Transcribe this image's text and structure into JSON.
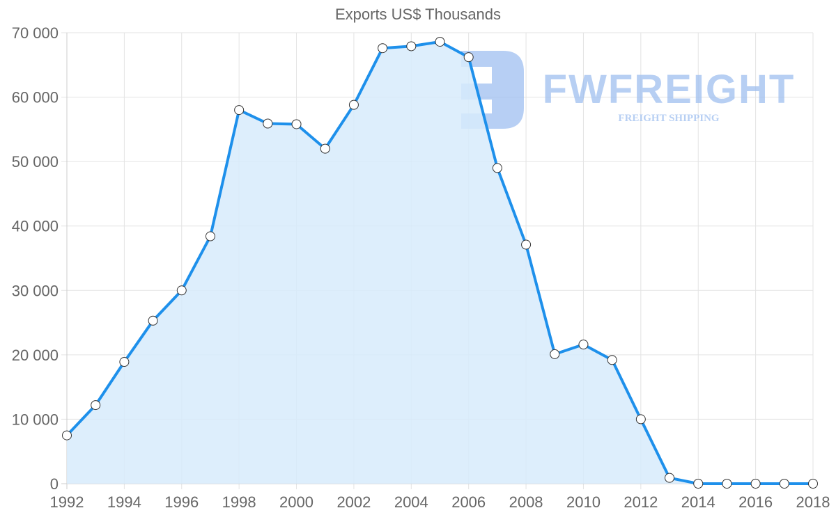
{
  "chart_data": {
    "type": "area",
    "title": "Exports US$ Thousands",
    "xlabel": "",
    "ylabel": "",
    "x": [
      1992,
      1993,
      1994,
      1995,
      1996,
      1997,
      1998,
      1999,
      2000,
      2001,
      2002,
      2003,
      2004,
      2005,
      2006,
      2007,
      2008,
      2009,
      2010,
      2011,
      2012,
      2013,
      2014,
      2015,
      2016,
      2017,
      2018
    ],
    "series": [
      {
        "name": "Exports US$ Thousands",
        "values": [
          7500,
          12200,
          18900,
          25300,
          30000,
          38400,
          58000,
          55900,
          55800,
          52000,
          58800,
          67600,
          67900,
          68600,
          66200,
          49000,
          37100,
          20100,
          21600,
          19200,
          10000,
          900,
          0,
          0,
          0,
          0,
          0
        ]
      }
    ],
    "ylim": [
      0,
      70000
    ],
    "xlim": [
      1992,
      2018
    ],
    "y_ticks": [
      0,
      10000,
      20000,
      30000,
      40000,
      50000,
      60000,
      70000
    ],
    "y_tick_labels": [
      "0",
      "10 000",
      "20 000",
      "30 000",
      "40 000",
      "50 000",
      "60 000",
      "70 000"
    ],
    "x_ticks": [
      1992,
      1994,
      1996,
      1998,
      2000,
      2002,
      2004,
      2006,
      2008,
      2010,
      2012,
      2014,
      2016,
      2018
    ],
    "x_tick_labels": [
      "1992",
      "1994",
      "1996",
      "1998",
      "2000",
      "2002",
      "2004",
      "2006",
      "2008",
      "2010",
      "2012",
      "2014",
      "2016",
      "2018"
    ],
    "grid": true,
    "legend": "none",
    "colors": {
      "line": "#1e90eb",
      "fill": "#d7ebfc",
      "point_fill": "#ffffff",
      "point_stroke": "#333333",
      "grid": "#e3e3e3",
      "axis_text": "#666666"
    }
  },
  "watermark": {
    "brand": "FWFREIGHT",
    "tagline": "FREIGHT SHIPPING",
    "color": "#9fbff0"
  }
}
